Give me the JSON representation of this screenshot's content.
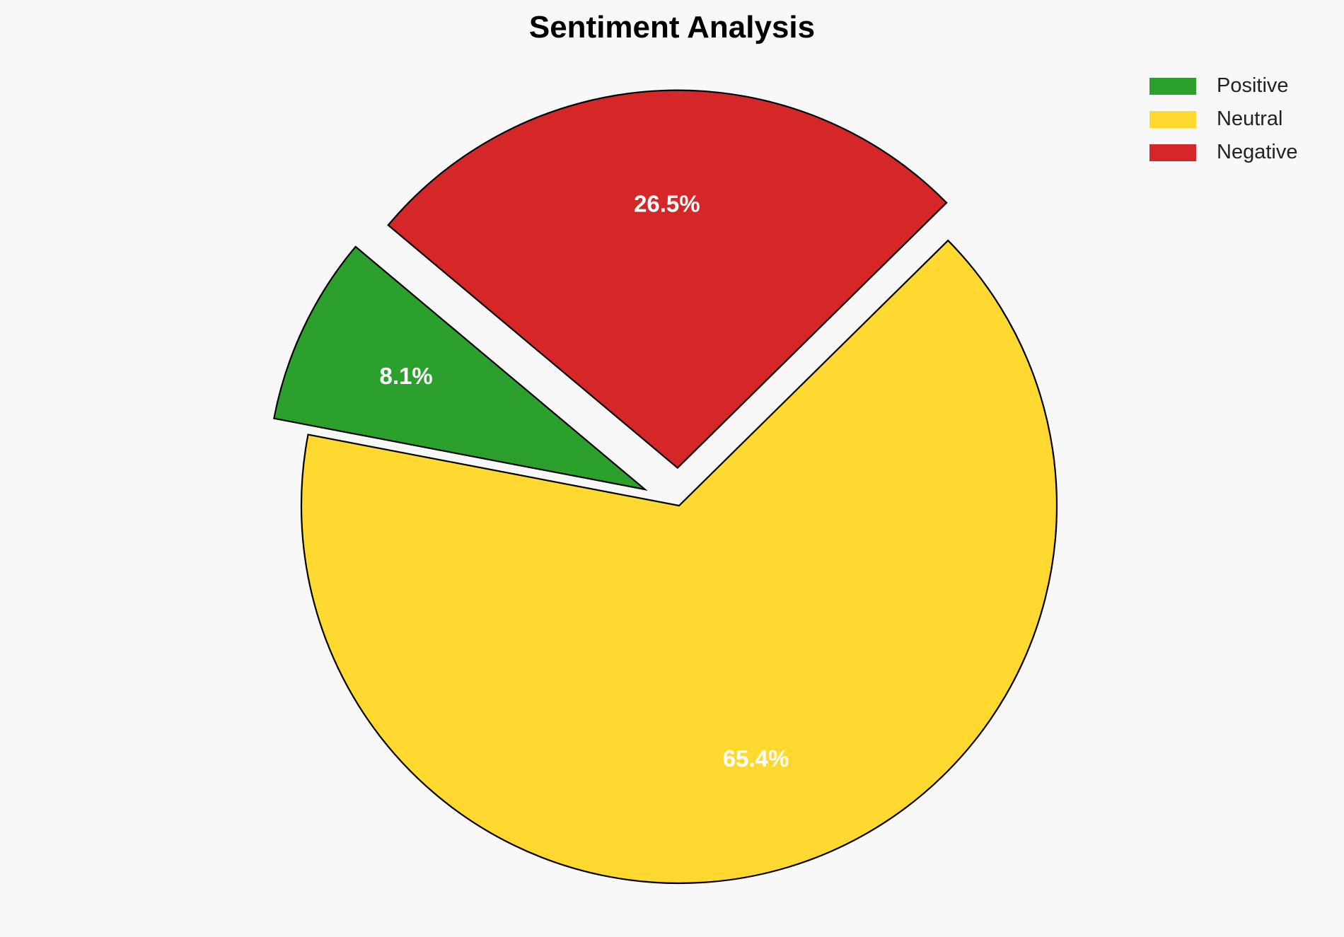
{
  "chart_data": {
    "type": "pie",
    "title": "Sentiment Analysis",
    "categories": [
      "Positive",
      "Neutral",
      "Negative"
    ],
    "values": [
      8.1,
      65.4,
      26.5
    ],
    "labels": [
      "8.1%",
      "65.4%",
      "26.5%"
    ],
    "colors": [
      "#2ca02c",
      "#ffd92f",
      "#d62728"
    ],
    "explode": [
      0.1,
      0,
      0.1
    ],
    "start_angle": 140,
    "legend_position": "top-right"
  }
}
